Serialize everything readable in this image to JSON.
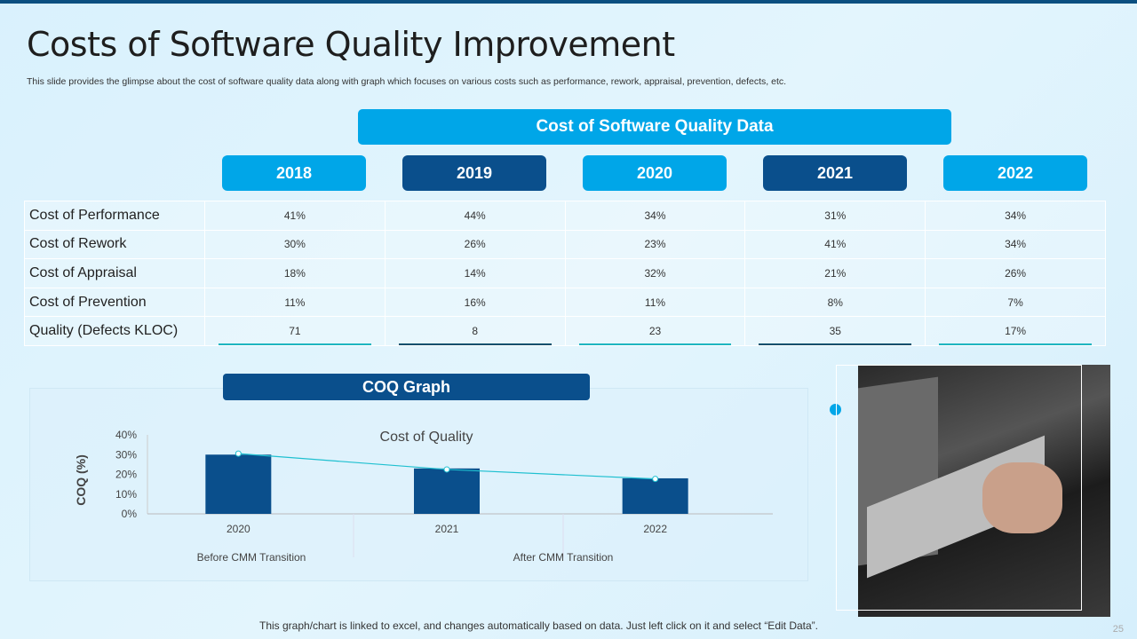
{
  "title": "Costs of Software Quality Improvement",
  "subtitle": "This slide provides the glimpse about the cost of software quality data along with graph which focuses on various costs such as performance, rework, appraisal, prevention, defects, etc.",
  "banner": "Cost of Software Quality Data",
  "years": [
    "2018",
    "2019",
    "2020",
    "2021",
    "2022"
  ],
  "rows": [
    {
      "label": "Cost of Performance",
      "values": [
        "41%",
        "44%",
        "34%",
        "31%",
        "34%"
      ]
    },
    {
      "label": "Cost of Rework",
      "values": [
        "30%",
        "26%",
        "23%",
        "41%",
        "34%"
      ]
    },
    {
      "label": "Cost of Appraisal",
      "values": [
        "18%",
        "14%",
        "32%",
        "21%",
        "26%"
      ]
    },
    {
      "label": "Cost of Prevention",
      "values": [
        "11%",
        "16%",
        "11%",
        "8%",
        "7%"
      ]
    },
    {
      "label": "Quality (Defects KLOC)",
      "values": [
        "71",
        "8",
        "23",
        "35",
        "17%"
      ]
    }
  ],
  "coq_button": "COQ Graph",
  "chart_data": {
    "type": "bar",
    "title": "Cost of Quality",
    "ylabel": "COQ (%)",
    "categories": [
      "2020",
      "2021",
      "2022"
    ],
    "values": [
      30,
      23,
      18
    ],
    "line_values": [
      30.5,
      22.5,
      17.7
    ],
    "yticks": [
      "0%",
      "10%",
      "20%",
      "30%",
      "40%"
    ],
    "ylim": [
      0,
      40
    ],
    "group_labels": [
      "Before CMM Transition",
      "After CMM Transition"
    ],
    "colors": {
      "bar": "#0a4f8c",
      "line": "#1fc0d0"
    }
  },
  "footer": "This graph/chart is linked to excel, and changes automatically based on data. Just left click on it and select “Edit Data”.",
  "page_number": "25"
}
